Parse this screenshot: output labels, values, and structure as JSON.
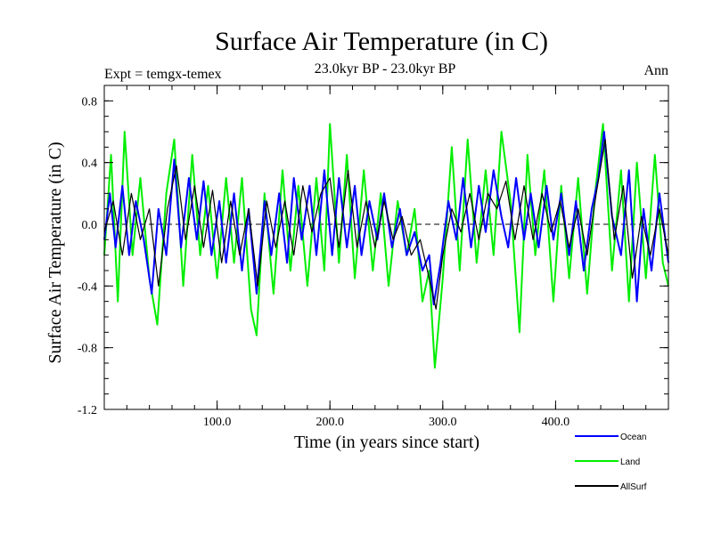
{
  "chart_data": {
    "type": "line",
    "title": "Surface Air Temperature (in C)",
    "subtitle": "23.0kyr BP - 23.0kyr BP",
    "experiment_label": "Expt = temgx-temex",
    "season_label": "Ann",
    "xlabel": "Time (in years since start)",
    "ylabel": "Surface Air Temperature (in C)",
    "xlim": [
      0,
      500
    ],
    "ylim": [
      -1.2,
      0.9
    ],
    "x_ticks": [
      100,
      200,
      300,
      400
    ],
    "x_tick_labels": [
      "100.0",
      "200.0",
      "300.0",
      "400.0"
    ],
    "y_ticks": [
      -1.2,
      -0.8,
      -0.4,
      0.0,
      0.4,
      0.8
    ],
    "y_tick_labels": [
      "-1.2",
      "-0.8",
      "-0.4",
      "0.0",
      "0.4",
      "0.8"
    ],
    "zero_line": 0.0,
    "legend_position": "bottom-right",
    "colors": {
      "Ocean": "#0000ff",
      "Land": "#00ee00",
      "AllSurf": "#000000",
      "axis": "#000000"
    },
    "series": [
      {
        "name": "Land",
        "x": [
          0,
          6,
          12,
          18,
          25,
          32,
          40,
          47,
          55,
          62,
          70,
          78,
          85,
          92,
          100,
          108,
          115,
          122,
          130,
          135,
          142,
          150,
          158,
          165,
          172,
          180,
          188,
          195,
          200,
          208,
          215,
          222,
          230,
          238,
          245,
          252,
          260,
          268,
          275,
          282,
          288,
          293,
          300,
          308,
          315,
          322,
          330,
          338,
          345,
          352,
          360,
          368,
          375,
          382,
          390,
          398,
          405,
          412,
          420,
          428,
          435,
          442,
          450,
          458,
          465,
          472,
          480,
          488,
          495,
          500
        ],
        "values": [
          -0.2,
          0.45,
          -0.5,
          0.6,
          -0.2,
          0.3,
          -0.35,
          -0.65,
          0.2,
          0.55,
          -0.4,
          0.45,
          -0.2,
          0.25,
          -0.35,
          0.3,
          -0.25,
          0.3,
          -0.55,
          -0.72,
          0.2,
          -0.45,
          0.35,
          -0.3,
          0.25,
          -0.4,
          0.3,
          -0.3,
          0.65,
          -0.25,
          0.45,
          -0.35,
          0.35,
          -0.3,
          0.2,
          -0.4,
          0.15,
          -0.2,
          0.1,
          -0.5,
          -0.3,
          -0.93,
          -0.35,
          0.5,
          -0.3,
          0.55,
          -0.25,
          0.35,
          -0.2,
          0.6,
          0.15,
          -0.7,
          0.45,
          -0.2,
          0.35,
          -0.5,
          0.25,
          -0.35,
          0.3,
          -0.45,
          0.2,
          0.65,
          -0.3,
          0.35,
          -0.5,
          0.4,
          -0.35,
          0.45,
          -0.25,
          -0.4
        ]
      },
      {
        "name": "Ocean",
        "x": [
          0,
          5,
          10,
          16,
          22,
          28,
          35,
          42,
          48,
          55,
          62,
          68,
          75,
          82,
          88,
          95,
          102,
          108,
          115,
          122,
          128,
          135,
          142,
          148,
          155,
          162,
          168,
          175,
          182,
          188,
          195,
          202,
          208,
          215,
          222,
          228,
          235,
          242,
          248,
          255,
          262,
          268,
          275,
          282,
          288,
          292,
          298,
          305,
          312,
          318,
          325,
          332,
          338,
          345,
          352,
          358,
          365,
          372,
          378,
          385,
          392,
          398,
          405,
          412,
          418,
          425,
          432,
          438,
          443,
          450,
          458,
          465,
          472,
          478,
          485,
          492,
          500
        ],
        "values": [
          -0.1,
          0.2,
          -0.15,
          0.25,
          -0.2,
          0.15,
          -0.1,
          -0.45,
          0.1,
          -0.2,
          0.42,
          -0.15,
          0.3,
          -0.1,
          0.28,
          -0.2,
          0.15,
          -0.25,
          0.2,
          -0.3,
          0.1,
          -0.45,
          0.15,
          -0.2,
          0.2,
          -0.25,
          0.3,
          -0.1,
          0.25,
          -0.2,
          0.35,
          -0.2,
          0.3,
          -0.15,
          0.25,
          -0.2,
          0.15,
          -0.1,
          0.2,
          -0.15,
          0.1,
          -0.2,
          -0.05,
          -0.3,
          -0.2,
          -0.52,
          -0.25,
          0.15,
          -0.1,
          0.3,
          -0.15,
          0.25,
          -0.05,
          0.35,
          0.05,
          -0.15,
          0.3,
          -0.1,
          0.2,
          -0.15,
          0.25,
          -0.1,
          0.2,
          -0.2,
          0.15,
          -0.3,
          0.1,
          0.3,
          0.6,
          0.05,
          -0.2,
          0.35,
          -0.5,
          0.1,
          -0.3,
          0.2,
          -0.25
        ]
      },
      {
        "name": "AllSurf",
        "x": [
          0,
          8,
          16,
          24,
          32,
          40,
          48,
          56,
          64,
          72,
          80,
          88,
          96,
          104,
          112,
          120,
          128,
          136,
          144,
          152,
          160,
          168,
          176,
          184,
          192,
          200,
          208,
          216,
          224,
          232,
          240,
          248,
          256,
          264,
          272,
          280,
          288,
          294,
          300,
          308,
          316,
          324,
          332,
          340,
          348,
          356,
          364,
          372,
          380,
          388,
          396,
          404,
          412,
          420,
          428,
          436,
          444,
          452,
          460,
          468,
          476,
          484,
          492,
          500
        ],
        "values": [
          -0.05,
          0.15,
          -0.2,
          0.2,
          -0.1,
          0.1,
          -0.4,
          0.1,
          0.38,
          -0.1,
          0.25,
          -0.15,
          0.22,
          -0.25,
          0.15,
          -0.2,
          0.1,
          -0.4,
          0.15,
          -0.15,
          0.15,
          -0.2,
          0.25,
          -0.05,
          0.2,
          0.3,
          -0.15,
          0.35,
          -0.15,
          0.15,
          -0.15,
          0.15,
          -0.1,
          0.05,
          -0.2,
          -0.1,
          -0.35,
          -0.55,
          -0.2,
          0.1,
          -0.05,
          0.2,
          -0.1,
          0.2,
          0.1,
          0.28,
          -0.1,
          0.25,
          -0.1,
          0.2,
          -0.05,
          0.15,
          -0.15,
          0.1,
          -0.2,
          0.2,
          0.55,
          -0.1,
          0.25,
          -0.35,
          0.05,
          -0.2,
          0.1,
          -0.2
        ]
      }
    ]
  }
}
